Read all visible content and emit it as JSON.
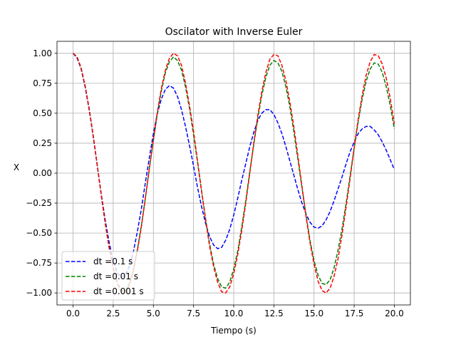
{
  "chart_data": {
    "type": "line",
    "title": "Oscilator with Inverse Euler",
    "xlabel": "Tiempo (s)",
    "ylabel": "X",
    "xlim": [
      -1.0,
      21.0
    ],
    "ylim": [
      -1.1,
      1.1
    ],
    "xticks": [
      0.0,
      2.5,
      5.0,
      7.5,
      10.0,
      12.5,
      15.0,
      17.5,
      20.0
    ],
    "xtick_labels": [
      "0.0",
      "2.5",
      "5.0",
      "7.5",
      "10.0",
      "12.5",
      "15.0",
      "17.5",
      "20.0"
    ],
    "yticks": [
      -1.0,
      -0.75,
      -0.5,
      -0.25,
      0.0,
      0.25,
      0.5,
      0.75,
      1.0
    ],
    "ytick_labels": [
      "−1.00",
      "−0.75",
      "−0.50",
      "−0.25",
      "0.00",
      "0.25",
      "0.50",
      "0.75",
      "1.00"
    ],
    "grid": true,
    "legend_position": "lower-left",
    "series": [
      {
        "name": "dt =0.1 s",
        "color": "#0000ff",
        "linestyle": "dashed",
        "x": [
          0.0,
          0.25,
          0.5,
          0.75,
          1.0,
          1.25,
          1.5,
          1.75,
          2.0,
          2.25,
          2.5,
          2.75,
          3.0,
          3.25,
          3.5,
          3.75,
          4.0,
          4.25,
          4.5,
          4.75,
          5.0,
          5.25,
          5.5,
          5.75,
          6.0,
          6.25,
          6.5,
          6.75,
          7.0,
          7.25,
          7.5,
          7.75,
          8.0,
          8.25,
          8.5,
          8.75,
          9.0,
          9.25,
          9.5,
          9.75,
          10.0,
          10.25,
          10.5,
          10.75,
          11.0,
          11.25,
          11.5,
          11.75,
          12.0,
          12.25,
          12.5,
          12.75,
          13.0,
          13.25,
          13.5,
          13.75,
          14.0,
          14.25,
          14.5,
          14.75,
          15.0,
          15.25,
          15.5,
          15.75,
          16.0,
          16.25,
          16.5,
          16.75,
          17.0,
          17.25,
          17.5,
          17.75,
          18.0,
          18.25,
          18.5,
          18.75,
          19.0,
          19.25,
          19.5,
          19.75,
          20.0
        ],
        "y": [
          1.0,
          0.96,
          0.87,
          0.72,
          0.53,
          0.31,
          0.07,
          -0.17,
          -0.39,
          -0.58,
          -0.73,
          -0.83,
          -0.87,
          -0.85,
          -0.78,
          -0.66,
          -0.49,
          -0.3,
          -0.08,
          0.13,
          0.33,
          0.5,
          0.62,
          0.7,
          0.73,
          0.71,
          0.64,
          0.53,
          0.39,
          0.23,
          0.06,
          -0.12,
          -0.28,
          -0.42,
          -0.53,
          -0.6,
          -0.63,
          -0.62,
          -0.56,
          -0.47,
          -0.35,
          -0.21,
          -0.06,
          0.08,
          0.22,
          0.34,
          0.44,
          0.5,
          0.53,
          0.53,
          0.49,
          0.42,
          0.33,
          0.22,
          0.1,
          -0.02,
          -0.14,
          -0.25,
          -0.34,
          -0.41,
          -0.45,
          -0.46,
          -0.44,
          -0.39,
          -0.32,
          -0.23,
          -0.13,
          -0.03,
          0.08,
          0.18,
          0.26,
          0.33,
          0.37,
          0.39,
          0.39,
          0.36,
          0.32,
          0.26,
          0.19,
          0.11,
          0.03
        ]
      },
      {
        "name": "dt =0.01 s",
        "color": "#008000",
        "linestyle": "dashed",
        "x": [
          0.0,
          0.25,
          0.5,
          0.75,
          1.0,
          1.25,
          1.5,
          1.75,
          2.0,
          2.25,
          2.5,
          2.75,
          3.0,
          3.25,
          3.5,
          3.75,
          4.0,
          4.25,
          4.5,
          4.75,
          5.0,
          5.25,
          5.5,
          5.75,
          6.0,
          6.25,
          6.5,
          6.75,
          7.0,
          7.25,
          7.5,
          7.75,
          8.0,
          8.25,
          8.5,
          8.75,
          9.0,
          9.25,
          9.5,
          9.75,
          10.0,
          10.25,
          10.5,
          10.75,
          11.0,
          11.25,
          11.5,
          11.75,
          12.0,
          12.25,
          12.5,
          12.75,
          13.0,
          13.25,
          13.5,
          13.75,
          14.0,
          14.25,
          14.5,
          14.75,
          15.0,
          15.25,
          15.5,
          15.75,
          16.0,
          16.25,
          16.5,
          16.75,
          17.0,
          17.25,
          17.5,
          17.75,
          18.0,
          18.25,
          18.5,
          18.75,
          19.0,
          19.25,
          19.5,
          19.75,
          20.0
        ],
        "y": [
          1.0,
          0.97,
          0.87,
          0.73,
          0.54,
          0.31,
          0.07,
          -0.18,
          -0.41,
          -0.62,
          -0.79,
          -0.91,
          -0.98,
          -0.98,
          -0.92,
          -0.81,
          -0.64,
          -0.44,
          -0.21,
          0.04,
          0.27,
          0.5,
          0.69,
          0.84,
          0.93,
          0.97,
          0.94,
          0.86,
          0.72,
          0.54,
          0.32,
          0.09,
          -0.15,
          -0.38,
          -0.59,
          -0.76,
          -0.88,
          -0.95,
          -0.96,
          -0.91,
          -0.8,
          -0.65,
          -0.45,
          -0.23,
          0.01,
          0.24,
          0.46,
          0.65,
          0.8,
          0.9,
          0.94,
          0.92,
          0.85,
          0.72,
          0.55,
          0.34,
          0.11,
          -0.12,
          -0.35,
          -0.56,
          -0.73,
          -0.85,
          -0.92,
          -0.93,
          -0.89,
          -0.79,
          -0.64,
          -0.46,
          -0.25,
          -0.02,
          0.21,
          0.43,
          0.62,
          0.77,
          0.87,
          0.92,
          0.91,
          0.84,
          0.72,
          0.56,
          0.37
        ]
      },
      {
        "name": "dt =0.001 s",
        "color": "#ff0000",
        "linestyle": "dashed",
        "x": [
          0.0,
          0.25,
          0.5,
          0.75,
          1.0,
          1.25,
          1.5,
          1.75,
          2.0,
          2.25,
          2.5,
          2.75,
          3.0,
          3.25,
          3.5,
          3.75,
          4.0,
          4.25,
          4.5,
          4.75,
          5.0,
          5.25,
          5.5,
          5.75,
          6.0,
          6.25,
          6.5,
          6.75,
          7.0,
          7.25,
          7.5,
          7.75,
          8.0,
          8.25,
          8.5,
          8.75,
          9.0,
          9.25,
          9.5,
          9.75,
          10.0,
          10.25,
          10.5,
          10.75,
          11.0,
          11.25,
          11.5,
          11.75,
          12.0,
          12.25,
          12.5,
          12.75,
          13.0,
          13.25,
          13.5,
          13.75,
          14.0,
          14.25,
          14.5,
          14.75,
          15.0,
          15.25,
          15.5,
          15.75,
          16.0,
          16.25,
          16.5,
          16.75,
          17.0,
          17.25,
          17.5,
          17.75,
          18.0,
          18.25,
          18.5,
          18.75,
          19.0,
          19.25,
          19.5,
          19.75,
          20.0
        ],
        "y": [
          1.0,
          0.97,
          0.88,
          0.73,
          0.54,
          0.32,
          0.07,
          -0.18,
          -0.42,
          -0.63,
          -0.8,
          -0.92,
          -0.99,
          -0.99,
          -0.94,
          -0.82,
          -0.65,
          -0.45,
          -0.21,
          0.04,
          0.28,
          0.51,
          0.71,
          0.86,
          0.96,
          1.0,
          0.98,
          0.9,
          0.75,
          0.56,
          0.35,
          0.1,
          -0.15,
          -0.39,
          -0.61,
          -0.78,
          -0.91,
          -0.99,
          -1.0,
          -0.95,
          -0.84,
          -0.68,
          -0.48,
          -0.25,
          0.0,
          0.25,
          0.48,
          0.68,
          0.84,
          0.95,
          0.99,
          0.98,
          0.9,
          0.77,
          0.59,
          0.38,
          0.14,
          -0.11,
          -0.36,
          -0.58,
          -0.76,
          -0.9,
          -0.98,
          -1.0,
          -0.96,
          -0.86,
          -0.71,
          -0.51,
          -0.28,
          -0.04,
          0.21,
          0.45,
          0.65,
          0.82,
          0.93,
          0.99,
          0.98,
          0.91,
          0.79,
          0.62,
          0.41
        ]
      }
    ]
  }
}
